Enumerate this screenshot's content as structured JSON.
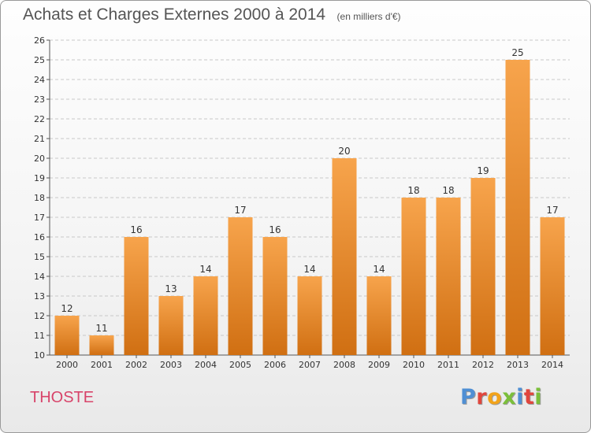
{
  "title": "Achats et Charges Externes 2000 à 2014",
  "unit_label": "(en milliers d'€)",
  "commune": "THOSTE",
  "logo": {
    "letters": [
      "P",
      "r",
      "o",
      "x",
      "i",
      "t",
      "i"
    ],
    "colors": [
      "#4f8fd4",
      "#e0463d",
      "#f2a31b",
      "#7bbf3a",
      "#4f8fd4",
      "#e0463d",
      "#7bbf3a"
    ]
  },
  "colors": {
    "bar_light": "#f7a44c",
    "bar_dark": "#d06f12",
    "commune_text": "#d8446a",
    "title_text": "#555555",
    "grid": "#c8c8c8"
  },
  "chart_data": {
    "type": "bar",
    "title": "Achats et Charges Externes 2000 à 2014",
    "subtitle": "(en milliers d'€)",
    "xlabel": "",
    "ylabel": "",
    "categories": [
      "2000",
      "2001",
      "2002",
      "2003",
      "2004",
      "2005",
      "2006",
      "2007",
      "2008",
      "2009",
      "2010",
      "2011",
      "2012",
      "2013",
      "2014"
    ],
    "values": [
      12,
      11,
      16,
      13,
      14,
      17,
      16,
      14,
      20,
      14,
      18,
      18,
      19,
      25,
      17
    ],
    "ylim": [
      10,
      26
    ],
    "yticks": [
      10,
      11,
      12,
      13,
      14,
      15,
      16,
      17,
      18,
      19,
      20,
      21,
      22,
      23,
      24,
      25,
      26
    ],
    "grid": true,
    "grid_style": "dashed horizontal"
  }
}
